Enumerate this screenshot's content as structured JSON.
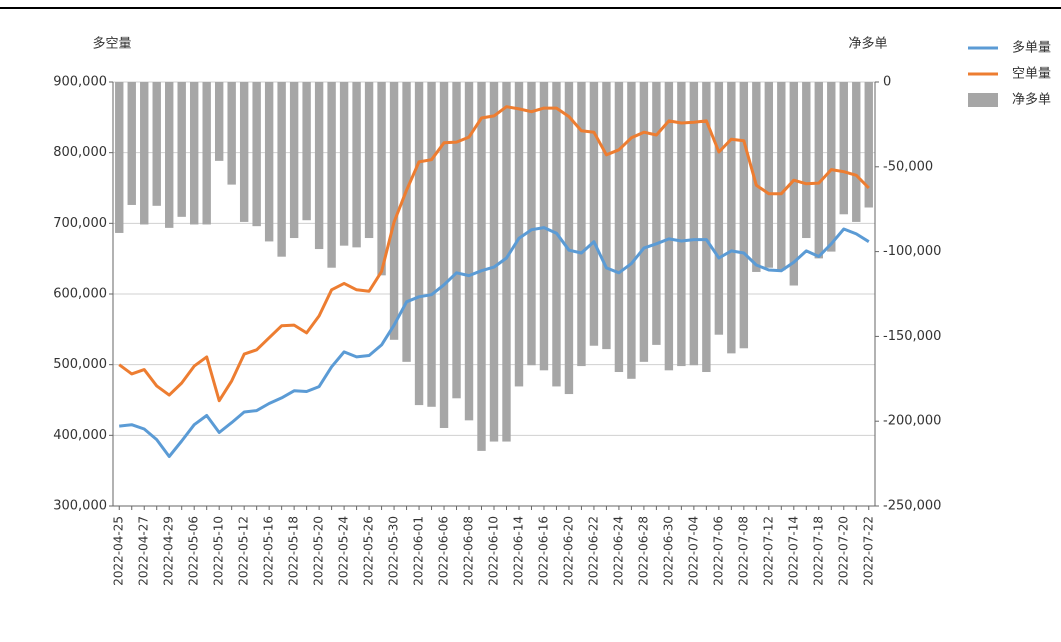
{
  "chart_data": {
    "type": "bar-line",
    "y_label": "多空量",
    "y2_label": "净多单",
    "categories": [
      "2022-04-25",
      null,
      "2022-04-27",
      null,
      "2022-04-29",
      null,
      "2022-05-06",
      null,
      "2022-05-10",
      null,
      "2022-05-12",
      null,
      "2022-05-16",
      null,
      "2022-05-18",
      null,
      "2022-05-20",
      null,
      "2022-05-24",
      null,
      "2022-05-26",
      null,
      "2022-05-30",
      null,
      "2022-06-01",
      null,
      "2022-06-06",
      null,
      "2022-06-08",
      null,
      "2022-06-10",
      null,
      "2022-06-14",
      null,
      "2022-06-16",
      null,
      "2022-06-20",
      null,
      "2022-06-22",
      null,
      "2022-06-24",
      null,
      "2022-06-28",
      null,
      "2022-06-30",
      null,
      "2022-07-04",
      null,
      "2022-07-06",
      null,
      "2022-07-08",
      null,
      "2022-07-12",
      null,
      "2022-07-14",
      null,
      "2022-07-18",
      null,
      "2022-07-20",
      null,
      "2022-07-22"
    ],
    "series": [
      {
        "name": "多单量",
        "type": "line",
        "color": "#5b9bd5",
        "axis": "y",
        "values": [
          413000,
          415000,
          409000,
          394000,
          370000,
          392000,
          415000,
          428000,
          404000,
          418000,
          433000,
          435000,
          445000,
          453000,
          463000,
          462000,
          469000,
          497000,
          518000,
          511000,
          513000,
          528000,
          556000,
          589000,
          596000,
          599000,
          613000,
          630000,
          626000,
          633000,
          638000,
          651000,
          679000,
          691000,
          694000,
          686000,
          662000,
          658000,
          674000,
          637000,
          630000,
          643000,
          665000,
          671000,
          678000,
          675000,
          677000,
          677000,
          651000,
          661000,
          658000,
          641000,
          634000,
          633000,
          645000,
          661000,
          653000,
          671000,
          692000,
          685000,
          674000
        ]
      },
      {
        "name": "空单量",
        "type": "line",
        "color": "#ed7d31",
        "axis": "y",
        "values": [
          500000,
          487000,
          493000,
          470000,
          457000,
          474000,
          498000,
          511000,
          449000,
          477000,
          515000,
          521000,
          538000,
          555000,
          556000,
          545000,
          569000,
          606000,
          615000,
          606000,
          604000,
          632000,
          702000,
          747000,
          787000,
          790000,
          814000,
          815000,
          822000,
          849000,
          852000,
          865000,
          862000,
          858000,
          863000,
          863000,
          851000,
          831000,
          829000,
          797000,
          804000,
          821000,
          829000,
          825000,
          845000,
          842000,
          843000,
          845000,
          801000,
          819000,
          817000,
          754000,
          742000,
          742000,
          761000,
          756000,
          757000,
          776000,
          773000,
          768000,
          750000
        ]
      },
      {
        "name": "净多单",
        "type": "bar",
        "color": "#a6a6a6",
        "axis": "y2",
        "values": [
          -89000,
          -72500,
          -84000,
          -73000,
          -86000,
          -79500,
          -84000,
          -84000,
          -46500,
          -60500,
          -82500,
          -85000,
          -94000,
          -103000,
          -92000,
          -81500,
          -98500,
          -109500,
          -96500,
          -97500,
          -92000,
          -114000,
          -152000,
          -165000,
          -190500,
          -191500,
          -204000,
          -186500,
          -199500,
          -217500,
          -212000,
          -212000,
          -179500,
          -167000,
          -170000,
          -179500,
          -184000,
          -167500,
          -155500,
          -157500,
          -171000,
          -175000,
          -165000,
          -155000,
          -170000,
          -167500,
          -167000,
          -171000,
          -149000,
          -160000,
          -157000,
          -112000,
          -109500,
          -111000,
          -120000,
          -92000,
          -104000,
          -100000,
          -78000,
          -82500,
          -74000
        ]
      }
    ],
    "ylim": [
      300000,
      900000
    ],
    "yticks": [
      {
        "value": 300000,
        "label": "300,000"
      },
      {
        "value": 400000,
        "label": "400,000"
      },
      {
        "value": 500000,
        "label": "500,000"
      },
      {
        "value": 600000,
        "label": "600,000"
      },
      {
        "value": 700000,
        "label": "700,000"
      },
      {
        "value": 800000,
        "label": "800,000"
      },
      {
        "value": 900000,
        "label": "900,000"
      }
    ],
    "y2lim": [
      -250000,
      0
    ],
    "y2ticks": [
      {
        "value": -250000,
        "label": "-250,000"
      },
      {
        "value": -200000,
        "label": "-200,000"
      },
      {
        "value": -150000,
        "label": "-150,000"
      },
      {
        "value": -100000,
        "label": "-100,000"
      },
      {
        "value": -50000,
        "label": "-50,000"
      },
      0
    ],
    "grid": true,
    "legend": "right"
  }
}
